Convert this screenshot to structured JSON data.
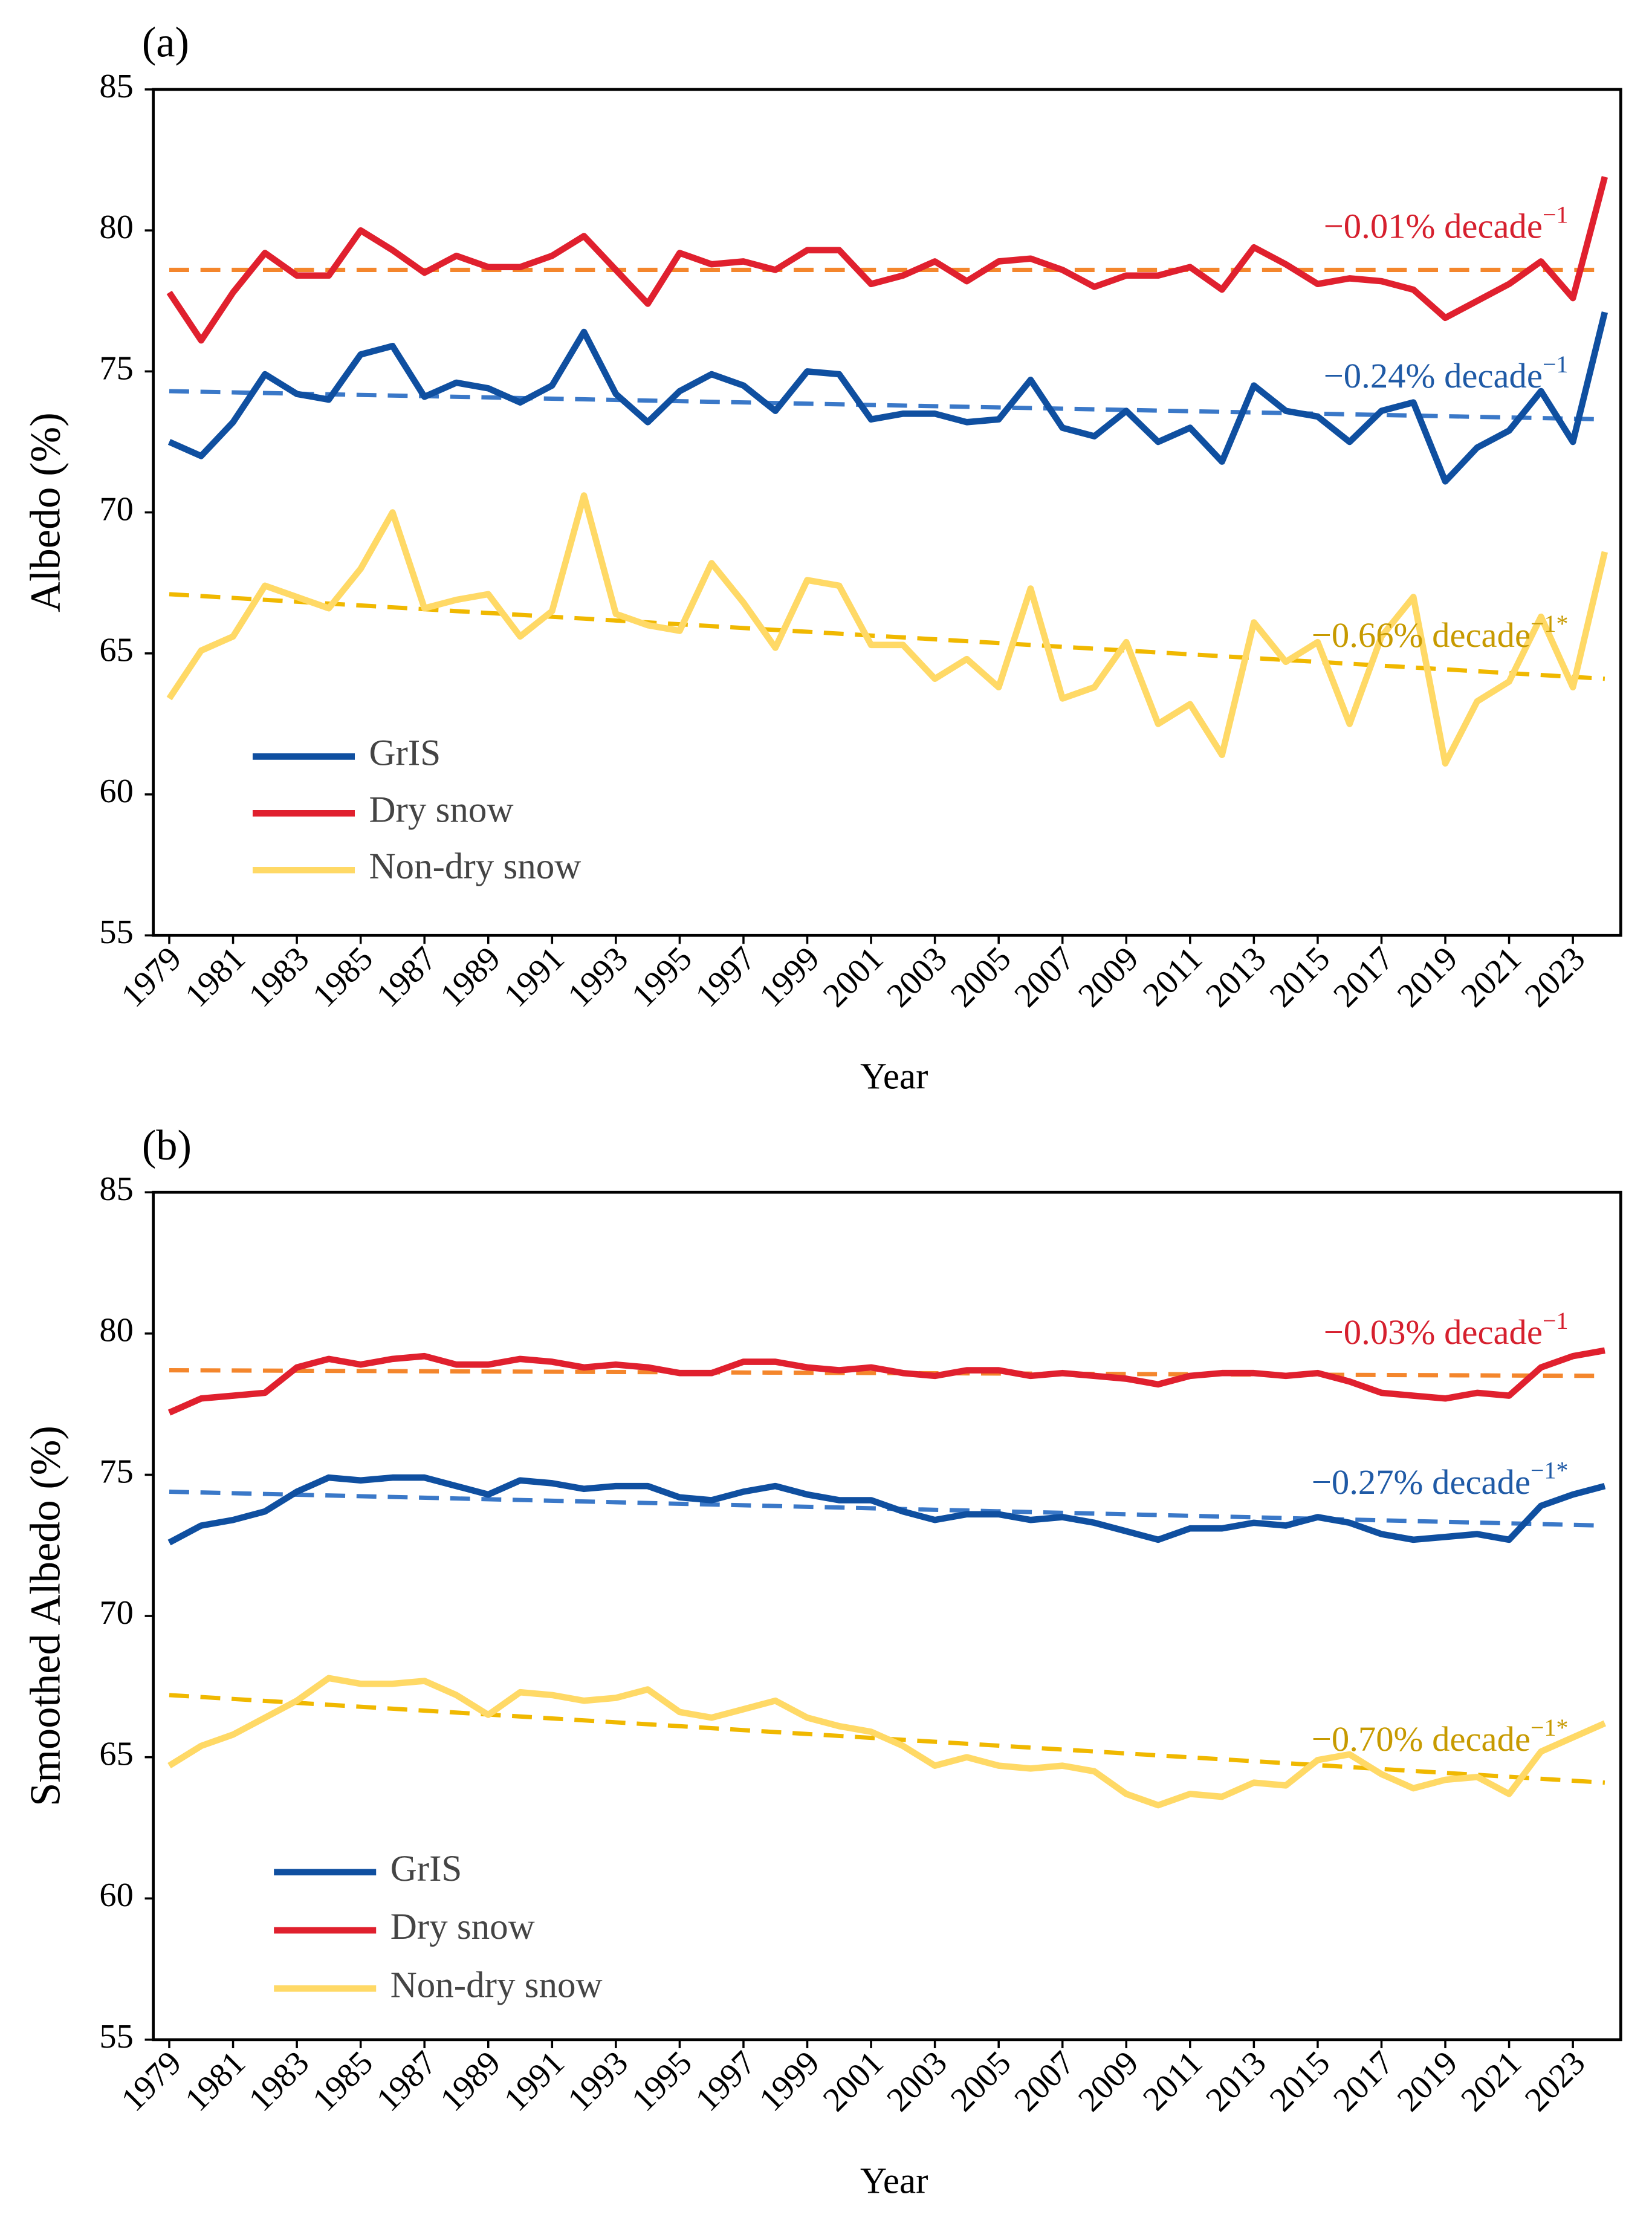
{
  "chart_data": [
    {
      "type": "line",
      "panel_label": "(a)",
      "xlabel": "Year",
      "ylabel": "Albedo (%)",
      "x": [
        1979,
        1980,
        1981,
        1982,
        1983,
        1984,
        1985,
        1986,
        1987,
        1988,
        1989,
        1990,
        1991,
        1992,
        1993,
        1994,
        1995,
        1996,
        1997,
        1998,
        1999,
        2000,
        2001,
        2002,
        2003,
        2004,
        2005,
        2006,
        2007,
        2008,
        2009,
        2010,
        2011,
        2012,
        2013,
        2014,
        2015,
        2016,
        2017,
        2018,
        2019,
        2020,
        2021,
        2022,
        2023,
        2024
      ],
      "xlim": [
        1978.5,
        2024.5
      ],
      "xticks": [
        1979,
        1981,
        1983,
        1985,
        1987,
        1989,
        1991,
        1993,
        1995,
        1997,
        1999,
        2001,
        2003,
        2005,
        2007,
        2009,
        2011,
        2013,
        2015,
        2017,
        2019,
        2021,
        2023
      ],
      "ylim": [
        55,
        85
      ],
      "yticks": [
        55,
        60,
        65,
        70,
        75,
        80,
        85
      ],
      "legend": "lower left",
      "series": [
        {
          "name": "GrIS",
          "color": "#0f4fa0",
          "values": [
            72.5,
            72.0,
            73.2,
            74.9,
            74.2,
            74.0,
            75.6,
            75.9,
            74.1,
            74.6,
            74.4,
            73.9,
            74.5,
            76.4,
            74.2,
            73.2,
            74.3,
            74.9,
            74.5,
            73.6,
            75.0,
            74.9,
            73.3,
            73.5,
            73.5,
            73.2,
            73.3,
            74.7,
            73.0,
            72.7,
            73.6,
            72.5,
            73.0,
            71.8,
            74.5,
            73.6,
            73.4,
            72.5,
            73.6,
            73.9,
            71.1,
            72.3,
            72.9,
            74.3,
            72.5,
            77.1
          ]
        },
        {
          "name": "Dry snow",
          "color": "#e0202e",
          "values": [
            77.8,
            76.1,
            77.8,
            79.2,
            78.4,
            78.4,
            80.0,
            79.3,
            78.5,
            79.1,
            78.7,
            78.7,
            79.1,
            79.8,
            78.6,
            77.4,
            79.2,
            78.8,
            78.9,
            78.6,
            79.3,
            79.3,
            78.1,
            78.4,
            78.9,
            78.2,
            78.9,
            79.0,
            78.6,
            78.0,
            78.4,
            78.4,
            78.7,
            77.9,
            79.4,
            78.8,
            78.1,
            78.3,
            78.2,
            77.9,
            76.9,
            77.5,
            78.1,
            78.9,
            77.6,
            81.9
          ]
        },
        {
          "name": "Non-dry snow",
          "color": "#ffd966",
          "values": [
            63.4,
            65.1,
            65.6,
            67.4,
            67.0,
            66.6,
            68.0,
            70.0,
            66.6,
            66.9,
            67.1,
            65.6,
            66.5,
            70.6,
            66.4,
            66.0,
            65.8,
            68.2,
            66.8,
            65.2,
            67.6,
            67.4,
            65.3,
            65.3,
            64.1,
            64.8,
            63.8,
            67.3,
            63.4,
            63.8,
            65.4,
            62.5,
            63.2,
            61.4,
            66.1,
            64.7,
            65.4,
            62.5,
            65.6,
            67.0,
            61.1,
            63.3,
            64.0,
            66.3,
            63.8,
            68.6
          ]
        }
      ],
      "trends": [
        {
          "color": "#f4862c",
          "label_color": "#d6202e",
          "x": [
            1979,
            2024
          ],
          "values": [
            78.6,
            78.6
          ],
          "label": "−0.01% decade",
          "label_sup": "−1"
        },
        {
          "color": "#3a78c8",
          "label_color": "#1f5aa6",
          "x": [
            1979,
            2024
          ],
          "values": [
            74.3,
            73.3
          ],
          "label": "−0.24% decade",
          "label_sup": "−1"
        },
        {
          "color": "#f0b800",
          "label_color": "#c79a00",
          "x": [
            1979,
            2024
          ],
          "values": [
            67.1,
            64.1
          ],
          "label": "−0.66% decade",
          "label_sup": "−1*"
        }
      ]
    },
    {
      "type": "line",
      "panel_label": "(b)",
      "xlabel": "Year",
      "ylabel": "Smoothed Albedo (%)",
      "x": [
        1979,
        1980,
        1981,
        1982,
        1983,
        1984,
        1985,
        1986,
        1987,
        1988,
        1989,
        1990,
        1991,
        1992,
        1993,
        1994,
        1995,
        1996,
        1997,
        1998,
        1999,
        2000,
        2001,
        2002,
        2003,
        2004,
        2005,
        2006,
        2007,
        2008,
        2009,
        2010,
        2011,
        2012,
        2013,
        2014,
        2015,
        2016,
        2017,
        2018,
        2019,
        2020,
        2021,
        2022,
        2023,
        2024
      ],
      "xlim": [
        1978.5,
        2024.5
      ],
      "xticks": [
        1979,
        1981,
        1983,
        1985,
        1987,
        1989,
        1991,
        1993,
        1995,
        1997,
        1999,
        2001,
        2003,
        2005,
        2007,
        2009,
        2011,
        2013,
        2015,
        2017,
        2019,
        2021,
        2023
      ],
      "ylim": [
        55,
        85
      ],
      "yticks": [
        55,
        60,
        65,
        70,
        75,
        80,
        85
      ],
      "legend": "lower left",
      "series": [
        {
          "name": "GrIS",
          "color": "#0f4fa0",
          "values": [
            72.6,
            73.2,
            73.4,
            73.7,
            74.4,
            74.9,
            74.8,
            74.9,
            74.9,
            74.6,
            74.3,
            74.8,
            74.7,
            74.5,
            74.6,
            74.6,
            74.2,
            74.1,
            74.4,
            74.6,
            74.3,
            74.1,
            74.1,
            73.7,
            73.4,
            73.6,
            73.6,
            73.4,
            73.5,
            73.3,
            73.0,
            72.7,
            73.1,
            73.1,
            73.3,
            73.2,
            73.5,
            73.3,
            72.9,
            72.7,
            72.8,
            72.9,
            72.7,
            73.9,
            74.3,
            74.6
          ]
        },
        {
          "name": "Dry snow",
          "color": "#e0202e",
          "values": [
            77.2,
            77.7,
            77.8,
            77.9,
            78.8,
            79.1,
            78.9,
            79.1,
            79.2,
            78.9,
            78.9,
            79.1,
            79.0,
            78.8,
            78.9,
            78.8,
            78.6,
            78.6,
            79.0,
            79.0,
            78.8,
            78.7,
            78.8,
            78.6,
            78.5,
            78.7,
            78.7,
            78.5,
            78.6,
            78.5,
            78.4,
            78.2,
            78.5,
            78.6,
            78.6,
            78.5,
            78.6,
            78.3,
            77.9,
            77.8,
            77.7,
            77.9,
            77.8,
            78.8,
            79.2,
            79.4
          ]
        },
        {
          "name": "Non-dry snow",
          "color": "#ffd966",
          "values": [
            64.7,
            65.4,
            65.8,
            66.4,
            67.0,
            67.8,
            67.6,
            67.6,
            67.7,
            67.2,
            66.5,
            67.3,
            67.2,
            67.0,
            67.1,
            67.4,
            66.6,
            66.4,
            66.7,
            67.0,
            66.4,
            66.1,
            65.9,
            65.4,
            64.7,
            65.0,
            64.7,
            64.6,
            64.7,
            64.5,
            63.7,
            63.3,
            63.7,
            63.6,
            64.1,
            64.0,
            64.9,
            65.1,
            64.4,
            63.9,
            64.2,
            64.3,
            63.7,
            65.2,
            65.7,
            66.2
          ]
        }
      ],
      "trends": [
        {
          "color": "#f4862c",
          "label_color": "#d6202e",
          "x": [
            1979,
            2024
          ],
          "values": [
            78.7,
            78.5
          ],
          "label": "−0.03% decade",
          "label_sup": "−1"
        },
        {
          "color": "#3a78c8",
          "label_color": "#1f5aa6",
          "x": [
            1979,
            2024
          ],
          "values": [
            74.4,
            73.2
          ],
          "label": "−0.27% decade",
          "label_sup": "−1*"
        },
        {
          "color": "#f0b800",
          "label_color": "#c79a00",
          "x": [
            1979,
            2024
          ],
          "values": [
            67.2,
            64.1
          ],
          "label": "−0.70% decade",
          "label_sup": "−1*"
        }
      ]
    }
  ]
}
